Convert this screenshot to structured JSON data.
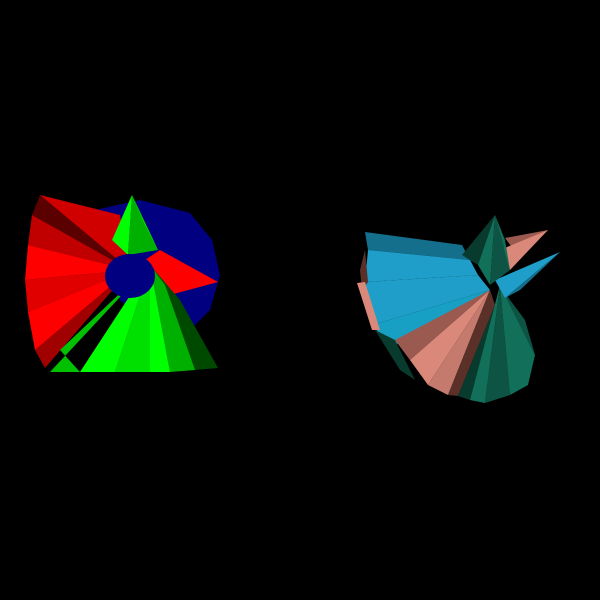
{
  "scene": {
    "background": "#000000",
    "objects": [
      {
        "id": "primary-cones",
        "palette": {
          "red": "#ff0000",
          "red_dark": "#c00000",
          "red_shadow": "#5a0000",
          "green": "#00ff00",
          "green_dark": "#00b000",
          "green_shadow": "#004a00",
          "blue": "#000080",
          "blue_dark": "#00005a"
        }
      },
      {
        "id": "muted-cones",
        "palette": {
          "cyan": "#1e9ec8",
          "cyan_dark": "#136f8c",
          "cyan_shadow": "#0d4a5e",
          "salmon": "#d9887a",
          "salmon_dark": "#9a5a50",
          "salmon_shadow": "#5a3028",
          "teal": "#12705a",
          "teal_dark": "#0d5444",
          "teal_shadow": "#083a2e"
        }
      }
    ]
  }
}
